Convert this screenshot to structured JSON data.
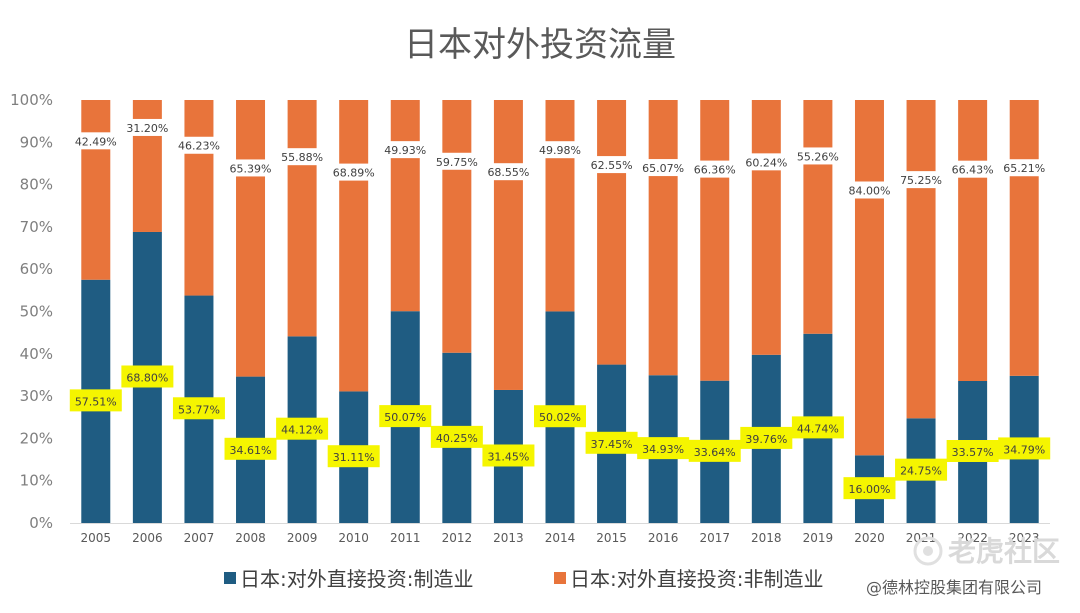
{
  "chart_data": {
    "type": "bar",
    "stacked": true,
    "percent": true,
    "title": "日本对外投资流量",
    "categories": [
      "2005",
      "2006",
      "2007",
      "2008",
      "2009",
      "2010",
      "2011",
      "2012",
      "2013",
      "2014",
      "2015",
      "2016",
      "2017",
      "2018",
      "2019",
      "2020",
      "2021",
      "2022",
      "2023"
    ],
    "series": [
      {
        "name": "日本:对外直接投资:制造业",
        "color": "#1f5c82",
        "values": [
          57.51,
          68.8,
          53.77,
          34.61,
          44.12,
          31.11,
          50.07,
          40.25,
          31.45,
          50.02,
          37.45,
          34.93,
          33.64,
          39.76,
          44.74,
          16.0,
          24.75,
          33.57,
          34.79
        ],
        "labels": [
          "57.51%",
          "68.80%",
          "53.77%",
          "34.61%",
          "44.12%",
          "31.11%",
          "50.07%",
          "40.25%",
          "31.45%",
          "50.02%",
          "37.45%",
          "34.93%",
          "33.64%",
          "39.76%",
          "44.74%",
          "16.00%",
          "24.75%",
          "33.57%",
          "34.79%"
        ]
      },
      {
        "name": "日本:对外直接投资:非制造业",
        "color": "#e8743b",
        "values": [
          42.49,
          31.2,
          46.23,
          65.39,
          55.88,
          68.89,
          49.93,
          59.75,
          68.55,
          49.98,
          62.55,
          65.07,
          66.36,
          60.24,
          55.26,
          84.0,
          75.25,
          66.43,
          65.21
        ],
        "labels": [
          "42.49%",
          "31.20%",
          "46.23%",
          "65.39%",
          "55.88%",
          "68.89%",
          "49.93%",
          "59.75%",
          "68.55%",
          "49.98%",
          "62.55%",
          "65.07%",
          "66.36%",
          "60.24%",
          "55.26%",
          "84.00%",
          "75.25%",
          "66.43%",
          "65.21%"
        ]
      }
    ],
    "y_ticks": [
      "0%",
      "10%",
      "20%",
      "30%",
      "40%",
      "50%",
      "60%",
      "70%",
      "80%",
      "90%",
      "100%"
    ],
    "ylim": [
      0,
      100
    ],
    "highlight_color": "#f5f500"
  },
  "watermark": {
    "logo_text": "老虎社区",
    "copyright": "@德林控股集团有限公司"
  }
}
